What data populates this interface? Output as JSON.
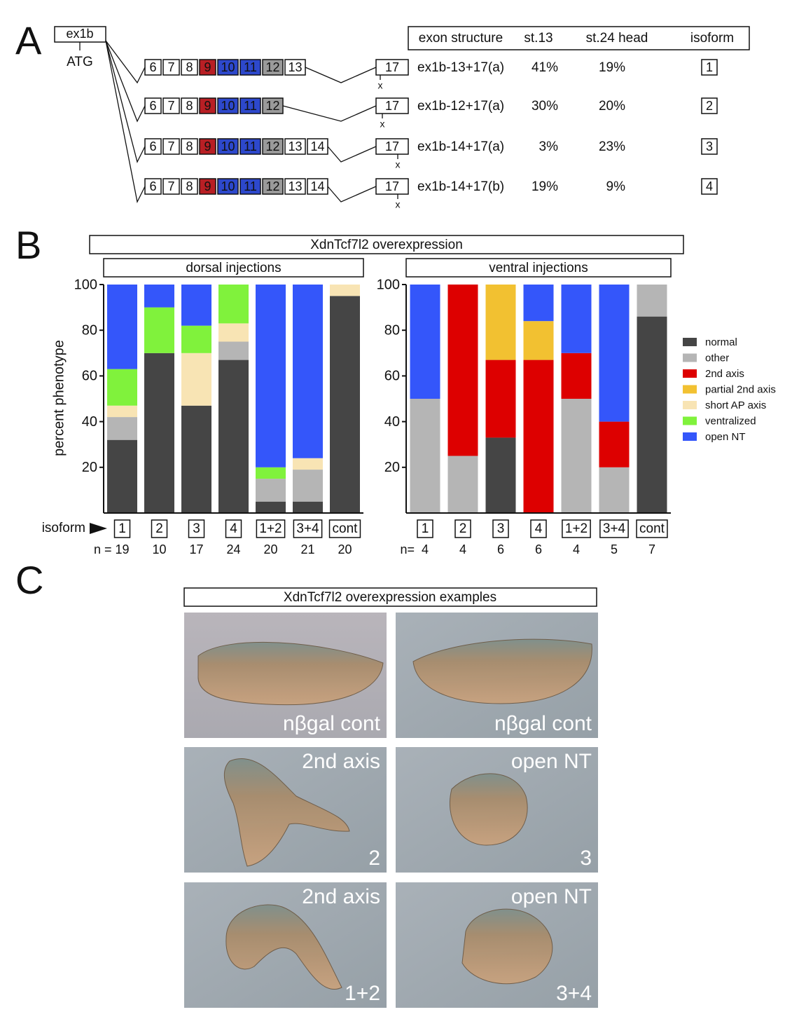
{
  "panel_a": {
    "letter": "A",
    "start_exon": "ex1b",
    "start_codon": "ATG",
    "header": [
      "exon structure",
      "st.13",
      "st.24 head",
      "isoform"
    ],
    "rows": [
      {
        "exons": [
          "6",
          "7",
          "8",
          "9",
          "10",
          "11",
          "12",
          "13"
        ],
        "end_exon": "17",
        "stop": "x",
        "structure": "ex1b-13+17(a)",
        "st13": "41%",
        "st24_head": "19%",
        "isoform": "1"
      },
      {
        "exons": [
          "6",
          "7",
          "8",
          "9",
          "10",
          "11",
          "12"
        ],
        "end_exon": "17",
        "stop": "x",
        "structure": "ex1b-12+17(a)",
        "st13": "30%",
        "st24_head": "20%",
        "isoform": "2"
      },
      {
        "exons": [
          "6",
          "7",
          "8",
          "9",
          "10",
          "11",
          "12",
          "13",
          "14"
        ],
        "end_exon": "17",
        "stop": "x",
        "structure": "ex1b-14+17(a)",
        "st13": "3%",
        "st24_head": "23%",
        "isoform": "3"
      },
      {
        "exons": [
          "6",
          "7",
          "8",
          "9",
          "10",
          "11",
          "12",
          "13",
          "14"
        ],
        "end_exon": "17",
        "stop": "x",
        "structure": "ex1b-14+17(b)",
        "st13": "19%",
        "st24_head": "9%",
        "isoform": "4"
      }
    ]
  },
  "panel_b": {
    "letter": "B",
    "title": "XdnTcf7l2 overexpression",
    "isoform_label": "isoform"
  },
  "chart_data": [
    {
      "type": "bar",
      "stacked": true,
      "title": "dorsal injections",
      "y_label": "percent phenotype",
      "categories": [
        "1",
        "2",
        "3",
        "4",
        "1+2",
        "3+4",
        "cont"
      ],
      "n_label": "n =",
      "n": [
        19,
        10,
        17,
        24,
        20,
        21,
        20
      ],
      "ylim": [
        0,
        100
      ],
      "yticks": [
        20,
        40,
        60,
        80,
        100
      ],
      "series": [
        {
          "color": "#454545",
          "values": [
            32,
            70,
            47,
            67,
            5,
            5,
            95
          ]
        },
        {
          "color": "#b5b5b5",
          "values": [
            10,
            0,
            0,
            8,
            10,
            14,
            0
          ]
        },
        {
          "color": "#dd0000",
          "values": [
            0,
            0,
            0,
            0,
            0,
            0,
            0
          ]
        },
        {
          "color": "#f2c131",
          "values": [
            0,
            0,
            0,
            0,
            0,
            0,
            0
          ]
        },
        {
          "color": "#f8e4b4",
          "values": [
            5,
            0,
            23,
            8,
            0,
            5,
            5
          ]
        },
        {
          "color": "#80f23c",
          "values": [
            16,
            20,
            12,
            17,
            5,
            0,
            0
          ]
        },
        {
          "color": "#3456fa",
          "values": [
            37,
            10,
            18,
            0,
            80,
            76,
            0
          ]
        }
      ]
    },
    {
      "type": "bar",
      "stacked": true,
      "title": "ventral injections",
      "legend": "right",
      "categories": [
        "1",
        "2",
        "3",
        "4",
        "1+2",
        "3+4",
        "cont"
      ],
      "n_label": "n=",
      "n": [
        4,
        4,
        6,
        6,
        4,
        5,
        7
      ],
      "ylim": [
        0,
        100
      ],
      "yticks": [
        20,
        40,
        60,
        80,
        100
      ],
      "series": [
        {
          "name": "normal",
          "color": "#454545",
          "values": [
            0,
            0,
            33,
            0,
            0,
            0,
            86
          ]
        },
        {
          "name": "other",
          "color": "#b5b5b5",
          "values": [
            50,
            25,
            0,
            0,
            50,
            20,
            14
          ]
        },
        {
          "name": "2nd axis",
          "color": "#dd0000",
          "values": [
            0,
            75,
            34,
            67,
            20,
            20,
            0
          ]
        },
        {
          "name": "partial 2nd axis",
          "color": "#f2c131",
          "values": [
            0,
            0,
            33,
            17,
            0,
            0,
            0
          ]
        },
        {
          "name": "short AP axis",
          "color": "#f8e4b4",
          "values": [
            0,
            0,
            0,
            0,
            0,
            0,
            0
          ]
        },
        {
          "name": "ventralized",
          "color": "#80f23c",
          "values": [
            0,
            0,
            0,
            0,
            0,
            0,
            0
          ]
        },
        {
          "name": "open NT",
          "color": "#3456fa",
          "values": [
            50,
            0,
            0,
            16,
            30,
            60,
            0
          ]
        }
      ]
    }
  ],
  "panel_c": {
    "letter": "C",
    "title": "XdnTcf7l2 overexpression examples",
    "images": [
      {
        "bottom_label": "nβgal cont"
      },
      {
        "bottom_label": "nβgal cont"
      },
      {
        "top_label": "2nd axis",
        "bottom_label": "2"
      },
      {
        "top_label": "open NT",
        "bottom_label": "3"
      },
      {
        "top_label": "2nd axis",
        "bottom_label": "1+2"
      },
      {
        "top_label": "open NT",
        "bottom_label": "3+4"
      }
    ]
  }
}
